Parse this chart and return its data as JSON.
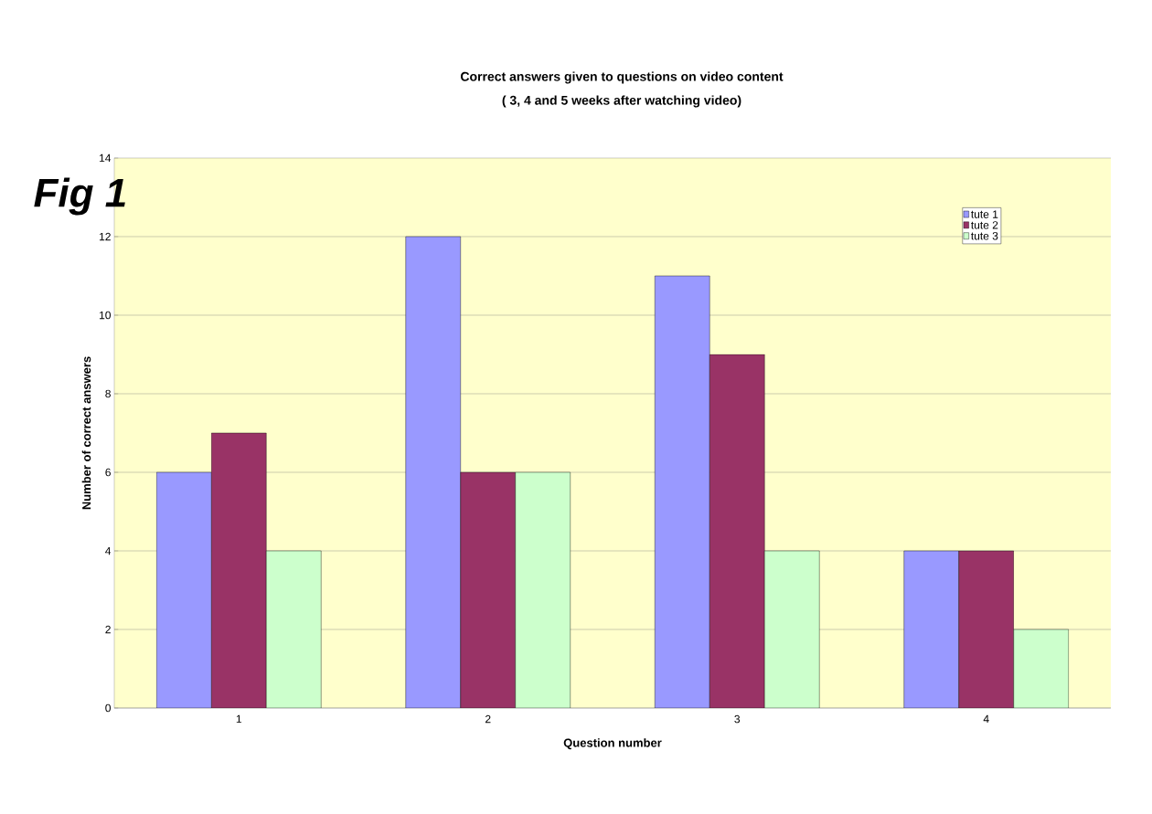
{
  "chart_data": {
    "type": "bar",
    "title": "Correct answers given to questions on video content",
    "subtitle": "( 3, 4 and 5 weeks after watching video)",
    "xlabel": "Question number",
    "ylabel": "Number of correct answers",
    "annotations": [
      "Fig 1"
    ],
    "categories": [
      "1",
      "2",
      "3",
      "4"
    ],
    "series": [
      {
        "name": "tute 1",
        "color": "#9999ff",
        "values": [
          6,
          12,
          11,
          4
        ]
      },
      {
        "name": "tute 2",
        "color": "#993366",
        "values": [
          7,
          6,
          9,
          4
        ]
      },
      {
        "name": "tute 3",
        "color": "#ccffcc",
        "values": [
          4,
          6,
          4,
          2
        ]
      }
    ],
    "ylim": [
      0,
      14
    ],
    "yticks": [
      0,
      2,
      4,
      6,
      8,
      10,
      12,
      14
    ],
    "grid": "y",
    "legend": "top right"
  }
}
